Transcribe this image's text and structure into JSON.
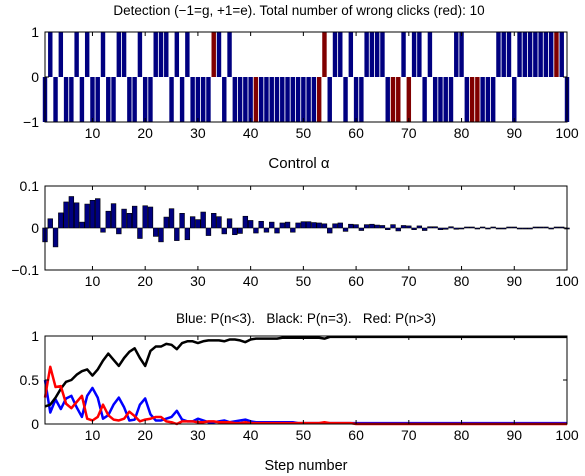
{
  "chart_data": [
    {
      "type": "bar",
      "title": "Detection (−1=g, +1=e). Total number of wrong clicks (red): 10",
      "xlabel": "Control α",
      "ylabel": "",
      "xlim": [
        1,
        100
      ],
      "ylim": [
        -1,
        1
      ],
      "xticks": [
        10,
        20,
        30,
        40,
        50,
        60,
        70,
        80,
        90,
        100
      ],
      "yticks": [
        -1,
        0,
        1
      ],
      "x": [
        1,
        2,
        3,
        4,
        5,
        6,
        7,
        8,
        9,
        10,
        11,
        12,
        13,
        14,
        15,
        16,
        17,
        18,
        19,
        20,
        21,
        22,
        23,
        24,
        25,
        26,
        27,
        28,
        29,
        30,
        31,
        32,
        33,
        34,
        35,
        36,
        37,
        38,
        39,
        40,
        41,
        42,
        43,
        44,
        45,
        46,
        47,
        48,
        49,
        50,
        51,
        52,
        53,
        54,
        55,
        56,
        57,
        58,
        59,
        60,
        61,
        62,
        63,
        64,
        65,
        66,
        67,
        68,
        69,
        70,
        71,
        72,
        73,
        74,
        75,
        76,
        77,
        78,
        79,
        80,
        81,
        82,
        83,
        84,
        85,
        86,
        87,
        88,
        89,
        90,
        91,
        92,
        93,
        94,
        95,
        96,
        97,
        98,
        99,
        100
      ],
      "values": [
        -1,
        1,
        -1,
        1,
        -1,
        -1,
        1,
        -1,
        1,
        -1,
        -1,
        1,
        -1,
        -1,
        1,
        1,
        -1,
        -1,
        1,
        -1,
        -1,
        1,
        1,
        1,
        -1,
        1,
        -1,
        1,
        -1,
        -1,
        -1,
        -1,
        1,
        1,
        -1,
        1,
        -1,
        -1,
        -1,
        -1,
        -1,
        -1,
        -1,
        -1,
        -1,
        -1,
        -1,
        -1,
        -1,
        -1,
        -1,
        -1,
        -1,
        1,
        -1,
        1,
        1,
        -1,
        1,
        -1,
        -1,
        1,
        1,
        1,
        1,
        -1,
        -1,
        -1,
        1,
        -1,
        1,
        1,
        -1,
        1,
        -1,
        -1,
        -1,
        -1,
        1,
        1,
        -1,
        -1,
        -1,
        -1,
        -1,
        -1,
        1,
        1,
        1,
        -1,
        1,
        1,
        1,
        1,
        1,
        1,
        1,
        1,
        1,
        -1
      ],
      "wrong_clicks": [
        33,
        41,
        53,
        54,
        67,
        68,
        70,
        82,
        83,
        98
      ],
      "colors": {
        "correct": "#000080",
        "wrong": "#800000"
      }
    },
    {
      "type": "bar",
      "title": "",
      "xlabel": "",
      "ylabel": "",
      "xlim": [
        1,
        100
      ],
      "ylim": [
        -0.1,
        0.1
      ],
      "xticks": [
        10,
        20,
        30,
        40,
        50,
        60,
        70,
        80,
        90,
        100
      ],
      "yticks": [
        -0.1,
        0,
        0.1
      ],
      "ytick_labels": [
        "−0.1",
        "0",
        "0.1"
      ],
      "x": [
        1,
        2,
        3,
        4,
        5,
        6,
        7,
        8,
        9,
        10,
        11,
        12,
        13,
        14,
        15,
        16,
        17,
        18,
        19,
        20,
        21,
        22,
        23,
        24,
        25,
        26,
        27,
        28,
        29,
        30,
        31,
        32,
        33,
        34,
        35,
        36,
        37,
        38,
        39,
        40,
        41,
        42,
        43,
        44,
        45,
        46,
        47,
        48,
        49,
        50,
        51,
        52,
        53,
        54,
        55,
        56,
        57,
        58,
        59,
        60,
        61,
        62,
        63,
        64,
        65,
        66,
        67,
        68,
        69,
        70,
        71,
        72,
        73,
        74,
        75,
        76,
        77,
        78,
        79,
        80,
        81,
        82,
        83,
        84,
        85,
        86,
        87,
        88,
        89,
        90,
        91,
        92,
        93,
        94,
        95,
        96,
        97,
        98,
        99,
        100
      ],
      "values": [
        -0.033,
        0.022,
        -0.045,
        0.036,
        0.062,
        0.075,
        0.06,
        0.014,
        0.057,
        0.066,
        0.07,
        -0.01,
        0.04,
        0.058,
        -0.014,
        0.045,
        0.035,
        0.052,
        -0.025,
        0.053,
        0.05,
        -0.02,
        -0.033,
        0.026,
        0.046,
        -0.03,
        0.035,
        -0.028,
        0.027,
        0.02,
        0.038,
        -0.018,
        0.035,
        0.027,
        -0.014,
        0.022,
        -0.016,
        -0.013,
        0.028,
        0.018,
        -0.012,
        0.016,
        -0.01,
        0.014,
        -0.012,
        0.012,
        0.014,
        -0.01,
        0.012,
        0.015,
        0.015,
        0.013,
        0.012,
        0.01,
        -0.012,
        0.01,
        0.012,
        -0.008,
        0.009,
        0.008,
        -0.006,
        0.008,
        0.009,
        0.007,
        0.006,
        -0.004,
        0.008,
        -0.007,
        0.006,
        0.005,
        -0.004,
        0.005,
        -0.006,
        0.003,
        0.003,
        -0.004,
        -0.003,
        0.003,
        -0.003,
        -0.002,
        0.002,
        0.002,
        -0.002,
        0.002,
        -0.002,
        0.002,
        -0.002,
        -0.002,
        0.002,
        0.002,
        -0.002,
        -0.002,
        -0.002,
        0.002,
        0.002,
        0.002,
        -0.002,
        0.002,
        0.002,
        -0.002
      ],
      "color": "#000080"
    },
    {
      "type": "line",
      "title": "Blue: P(n<3).   Black: P(n=3).   Red: P(n>3)",
      "xlabel": "Step number",
      "ylabel": "",
      "xlim": [
        1,
        100
      ],
      "ylim": [
        0,
        1
      ],
      "xticks": [
        10,
        20,
        30,
        40,
        50,
        60,
        70,
        80,
        90,
        100
      ],
      "yticks": [
        0,
        0.5,
        1
      ],
      "x": [
        1,
        2,
        3,
        4,
        5,
        6,
        7,
        8,
        9,
        10,
        11,
        12,
        13,
        14,
        15,
        16,
        17,
        18,
        19,
        20,
        21,
        22,
        23,
        24,
        25,
        26,
        27,
        28,
        29,
        30,
        31,
        32,
        33,
        34,
        35,
        36,
        37,
        38,
        39,
        40,
        41,
        42,
        43,
        44,
        45,
        46,
        47,
        48,
        49,
        50,
        51,
        52,
        53,
        54,
        55,
        56,
        57,
        58,
        59,
        60,
        61,
        62,
        63,
        64,
        65,
        66,
        67,
        68,
        69,
        70,
        71,
        72,
        73,
        74,
        75,
        76,
        77,
        78,
        79,
        80,
        81,
        82,
        83,
        84,
        85,
        86,
        87,
        88,
        89,
        90,
        91,
        92,
        93,
        94,
        95,
        96,
        97,
        98,
        99,
        100
      ],
      "series": [
        {
          "name": "Blue: P(n<3)",
          "color": "#0000ff",
          "values": [
            0.5,
            0.13,
            0.28,
            0.17,
            0.29,
            0.32,
            0.19,
            0.08,
            0.32,
            0.41,
            0.3,
            0.06,
            0.1,
            0.22,
            0.3,
            0.19,
            0.04,
            0.05,
            0.22,
            0.29,
            0.11,
            0.04,
            0.04,
            0.06,
            0.08,
            0.15,
            0.05,
            0.03,
            0.03,
            0.06,
            0.04,
            0.02,
            0.02,
            0.03,
            0.04,
            0.02,
            0.03,
            0.04,
            0.05,
            0.03,
            0.02,
            0.02,
            0.02,
            0.02,
            0.02,
            0.02,
            0.02,
            0.02,
            0.01,
            0.01,
            0.01,
            0.01,
            0.01,
            0.01,
            0.01,
            0.01,
            0.01,
            0.01,
            0.01,
            0.01,
            0.01,
            0.01,
            0.01,
            0.01,
            0.01,
            0.01,
            0.01,
            0.01,
            0.01,
            0.01,
            0.01,
            0.01,
            0.01,
            0.01,
            0.01,
            0.01,
            0.01,
            0.01,
            0.01,
            0.01,
            0.01,
            0.01,
            0.01,
            0.01,
            0.01,
            0.01,
            0.01,
            0.01,
            0.01,
            0.01,
            0.01,
            0.01,
            0.01,
            0.01,
            0.01,
            0.01,
            0.01,
            0.01,
            0.01,
            0.01
          ]
        },
        {
          "name": "Black: P(n=3)",
          "color": "#000000",
          "values": [
            0.2,
            0.22,
            0.3,
            0.4,
            0.48,
            0.5,
            0.56,
            0.6,
            0.62,
            0.55,
            0.62,
            0.72,
            0.8,
            0.73,
            0.66,
            0.75,
            0.82,
            0.86,
            0.75,
            0.66,
            0.83,
            0.88,
            0.88,
            0.91,
            0.9,
            0.85,
            0.92,
            0.94,
            0.94,
            0.92,
            0.94,
            0.95,
            0.95,
            0.95,
            0.94,
            0.96,
            0.96,
            0.95,
            0.93,
            0.96,
            0.97,
            0.97,
            0.97,
            0.97,
            0.97,
            0.98,
            0.98,
            0.98,
            0.98,
            0.98,
            0.98,
            0.98,
            0.98,
            0.97,
            0.99,
            0.99,
            0.99,
            0.99,
            0.99,
            0.99,
            0.99,
            0.99,
            0.99,
            0.99,
            0.99,
            0.99,
            0.99,
            0.99,
            0.99,
            0.99,
            0.99,
            0.99,
            0.99,
            0.99,
            0.99,
            0.99,
            0.99,
            0.99,
            0.99,
            0.99,
            0.99,
            0.99,
            0.99,
            0.99,
            0.99,
            0.99,
            0.99,
            0.99,
            0.99,
            0.99,
            0.99,
            0.99,
            0.99,
            0.99,
            0.99,
            0.99,
            0.99,
            0.99,
            0.99,
            0.99
          ]
        },
        {
          "name": "Red: P(n>3)",
          "color": "#ff0000",
          "values": [
            0.3,
            0.65,
            0.42,
            0.43,
            0.23,
            0.18,
            0.25,
            0.32,
            0.06,
            0.04,
            0.08,
            0.22,
            0.1,
            0.05,
            0.04,
            0.06,
            0.14,
            0.09,
            0.03,
            0.05,
            0.06,
            0.08,
            0.08,
            0.03,
            0.02,
            0.0,
            0.03,
            0.03,
            0.03,
            0.02,
            0.02,
            0.03,
            0.03,
            0.02,
            0.02,
            0.02,
            0.01,
            0.01,
            0.02,
            0.01,
            0.01,
            0.01,
            0.01,
            0.01,
            0.01,
            0.01,
            0.01,
            0.01,
            0.01,
            0.01,
            0.01,
            0.01,
            0.01,
            0.02,
            0.01,
            0.01,
            0.01,
            0.01,
            0.01,
            0.0,
            0.0,
            0.0,
            0.0,
            0.0,
            0.0,
            0.0,
            0.0,
            0.0,
            0.0,
            0.0,
            0.0,
            0.0,
            0.0,
            0.0,
            0.0,
            0.0,
            0.0,
            0.0,
            0.0,
            0.0,
            0.0,
            0.0,
            0.0,
            0.0,
            0.0,
            0.0,
            0.0,
            0.0,
            0.0,
            0.0,
            0.0,
            0.0,
            0.0,
            0.0,
            0.0,
            0.0,
            0.0,
            0.0,
            0.0,
            0.0
          ]
        }
      ]
    }
  ]
}
